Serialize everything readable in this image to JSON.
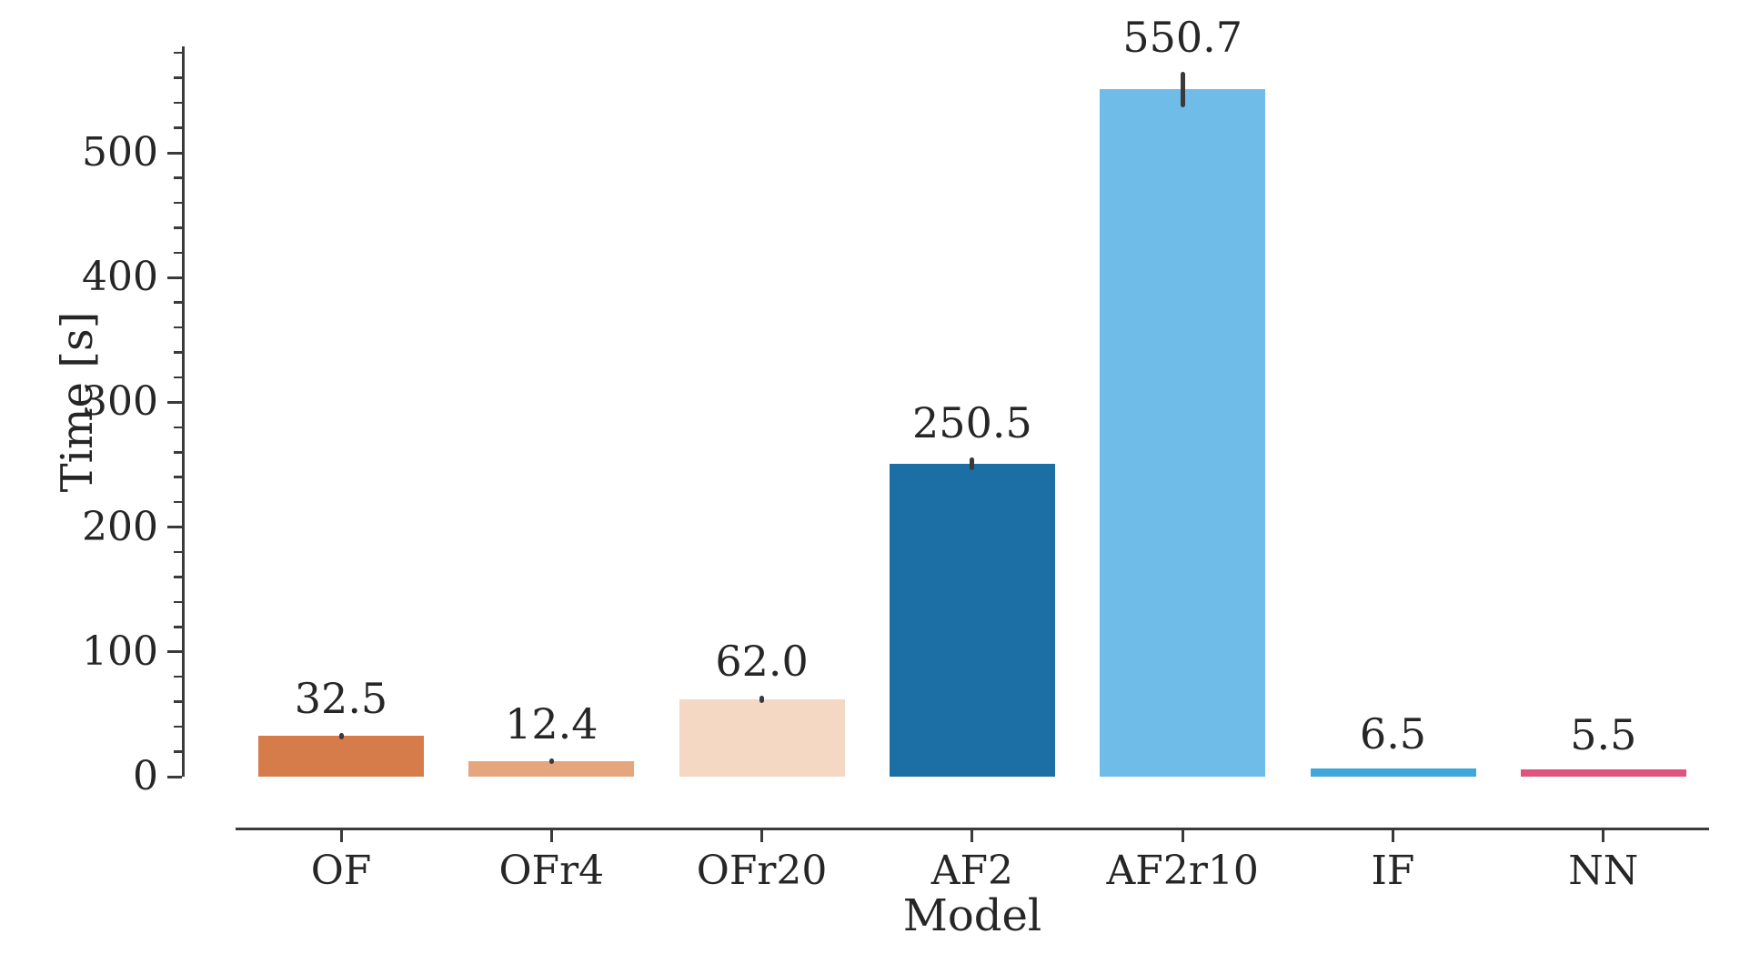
{
  "chart_data": {
    "type": "bar",
    "title": "",
    "xlabel": "Model",
    "ylabel": "Time [s]",
    "categories": [
      "OF",
      "OFr4",
      "OFr20",
      "AF2",
      "AF2r10",
      "IF",
      "NN"
    ],
    "values": [
      32.5,
      12.4,
      62.0,
      250.5,
      550.7,
      6.5,
      5.5
    ],
    "value_labels": [
      "32.5",
      "12.4",
      "62.0",
      "250.5",
      "550.7",
      "6.5",
      "5.5"
    ],
    "errors": [
      2.5,
      2.5,
      3.0,
      5.0,
      14.0,
      0,
      0
    ],
    "bar_colors": [
      "#d67c4a",
      "#e5a57d",
      "#f4d8c3",
      "#1b6fa4",
      "#70bce8",
      "#41a7da",
      "#e0557e"
    ],
    "error_bar_color": "#3a3a3a",
    "axis_color": "#3a3a3a",
    "text_color": "#262626",
    "ylim": [
      0,
      585
    ],
    "yticks": [
      0,
      100,
      200,
      300,
      400,
      500
    ],
    "ytick_labels": [
      "0",
      "100",
      "200",
      "300",
      "400",
      "500"
    ],
    "minor_tick_step": 20,
    "grid": false,
    "legend": null
  }
}
